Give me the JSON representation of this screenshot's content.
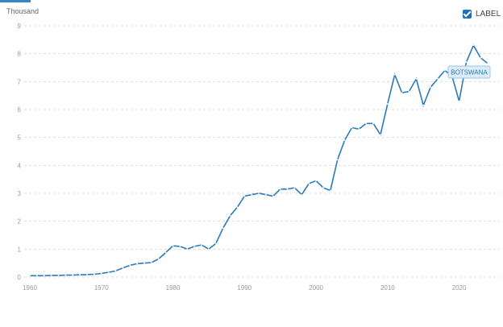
{
  "header": {
    "unit_label": "Thousand",
    "label_toggle": {
      "text": "LABEL",
      "checked": true
    }
  },
  "chart_data": {
    "type": "line",
    "title": "",
    "xlabel": "",
    "ylabel": "Thousand",
    "xlim": [
      1960,
      2024
    ],
    "ylim": [
      0,
      9
    ],
    "yticks": [
      0,
      1,
      2,
      3,
      4,
      5,
      6,
      7,
      8,
      9
    ],
    "xticks": [
      1960,
      1970,
      1980,
      1990,
      2000,
      2010,
      2020
    ],
    "grid": true,
    "series": [
      {
        "name": "BOTSWANA",
        "color": "#2b7bb9",
        "x": [
          1960,
          1961,
          1962,
          1963,
          1964,
          1965,
          1966,
          1967,
          1968,
          1969,
          1970,
          1971,
          1972,
          1973,
          1974,
          1975,
          1976,
          1977,
          1978,
          1979,
          1980,
          1981,
          1982,
          1983,
          1984,
          1985,
          1986,
          1987,
          1988,
          1989,
          1990,
          1991,
          1992,
          1993,
          1994,
          1995,
          1996,
          1997,
          1998,
          1999,
          2000,
          2001,
          2002,
          2003,
          2004,
          2005,
          2006,
          2007,
          2008,
          2009,
          2010,
          2011,
          2012,
          2013,
          2014,
          2015,
          2016,
          2017,
          2018,
          2019,
          2020,
          2021,
          2022,
          2023,
          2024
        ],
        "y": [
          0.05,
          0.05,
          0.05,
          0.06,
          0.06,
          0.07,
          0.07,
          0.08,
          0.09,
          0.1,
          0.13,
          0.17,
          0.22,
          0.33,
          0.42,
          0.48,
          0.5,
          0.52,
          0.65,
          0.88,
          1.12,
          1.1,
          1.0,
          1.1,
          1.15,
          1.0,
          1.2,
          1.75,
          2.2,
          2.5,
          2.9,
          2.95,
          3.0,
          2.95,
          2.9,
          3.15,
          3.15,
          3.2,
          2.95,
          3.35,
          3.45,
          3.2,
          3.1,
          4.2,
          4.9,
          5.35,
          5.3,
          5.5,
          5.5,
          5.1,
          6.2,
          7.25,
          6.6,
          6.65,
          7.1,
          6.15,
          6.8,
          7.1,
          7.4,
          7.2,
          6.3,
          7.7,
          8.3,
          7.85,
          7.65
        ]
      }
    ],
    "annotation": "BOTSWANA"
  }
}
